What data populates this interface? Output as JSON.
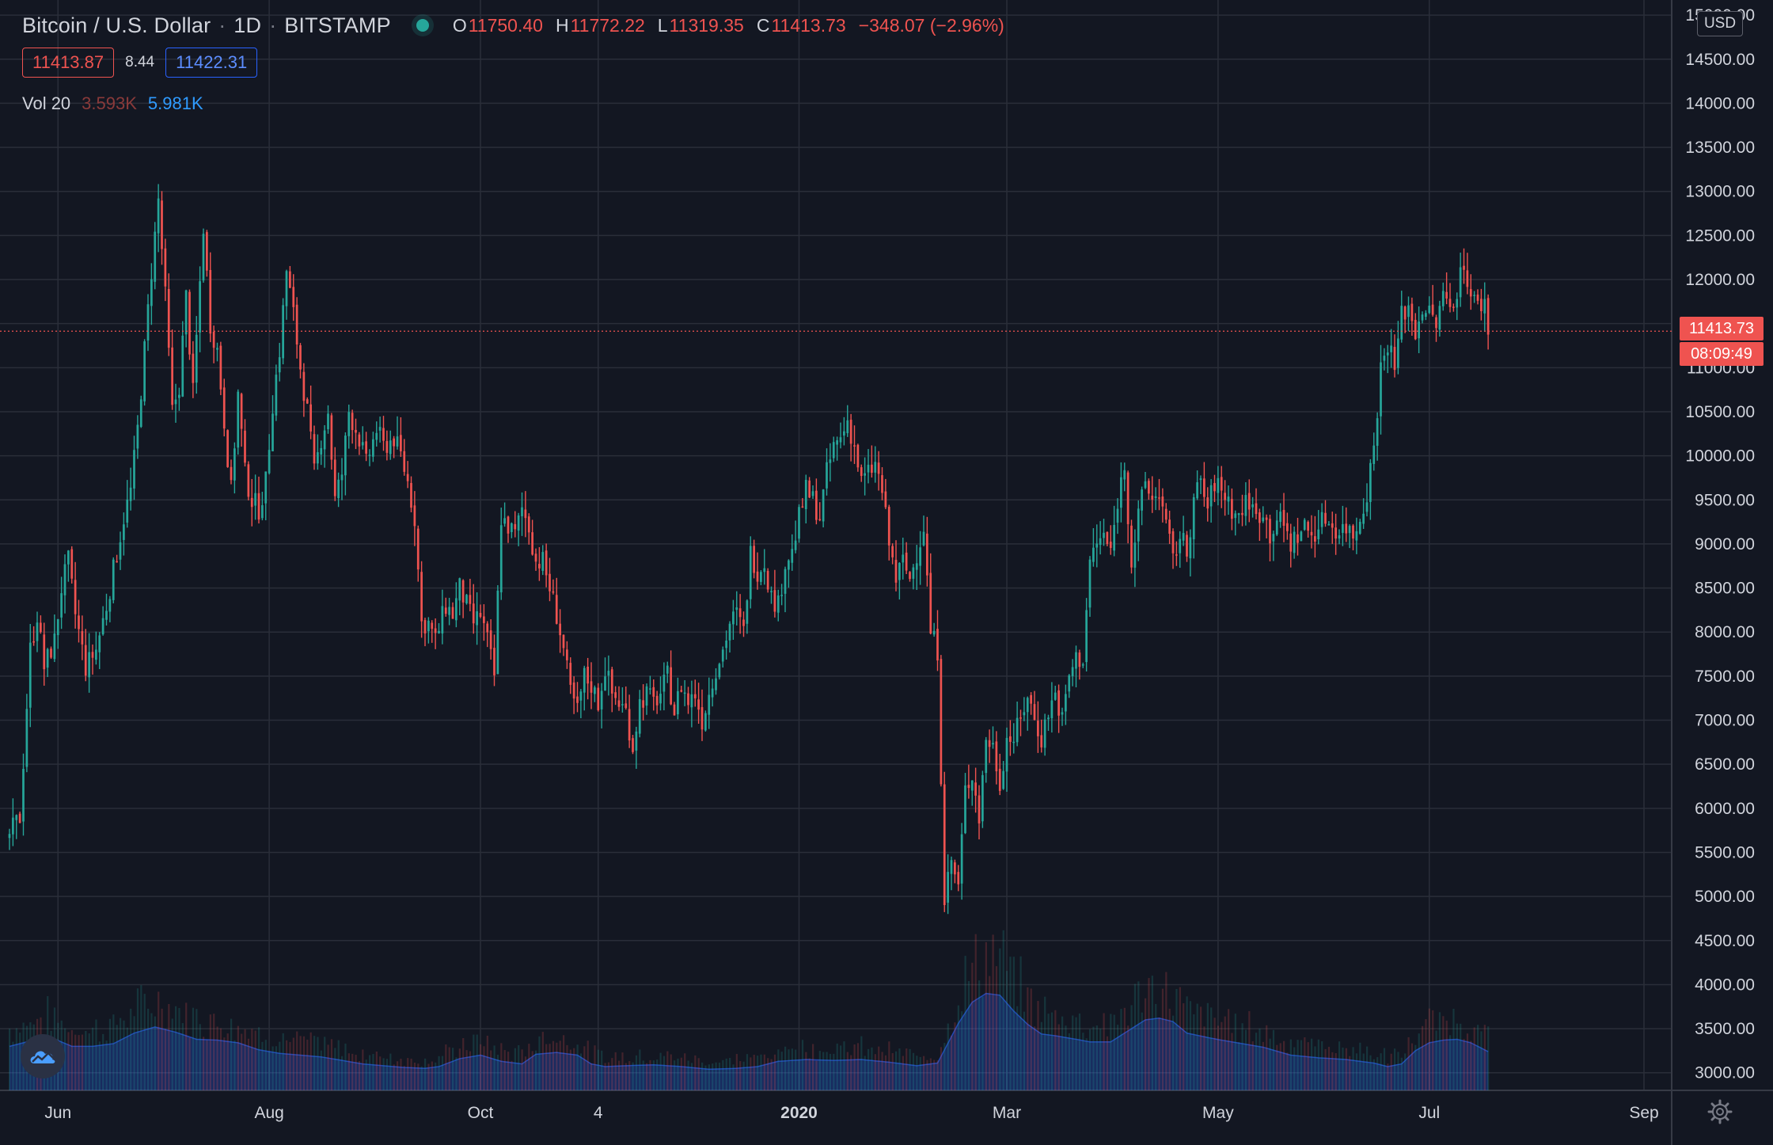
{
  "header": {
    "symbol": "Bitcoin / U.S. Dollar",
    "interval": "1D",
    "exchange": "BITSTAMP",
    "separator": "·",
    "ohlc": {
      "o_key": "O",
      "o_val": "11750.40",
      "h_key": "H",
      "h_val": "11772.22",
      "l_key": "L",
      "l_val": "11319.35",
      "c_key": "C",
      "c_val": "11413.73",
      "change": "−348.07 (−2.96%)"
    }
  },
  "quote": {
    "bid": "11413.87",
    "spread": "8.44",
    "ask": "11422.31"
  },
  "volume_legend": {
    "label": "Vol 20",
    "volume": "3.593K",
    "ma": "5.981K"
  },
  "price_scale": {
    "currency": "USD",
    "last_price": "11413.73",
    "countdown": "08:09:49"
  },
  "colors": {
    "background": "#131722",
    "up": "#26a69a",
    "down": "#ef5350",
    "grid": "#2a2e39",
    "volume_ma": "#2962ff"
  },
  "chart_data": {
    "type": "candlestick",
    "title": "Bitcoin / U.S. Dollar, 1D, BITSTAMP",
    "ylim": [
      2800,
      15100
    ],
    "y_ticks": [
      3000,
      3500,
      4000,
      4500,
      5000,
      5500,
      6000,
      6500,
      7000,
      7500,
      8000,
      8500,
      9000,
      9500,
      10000,
      10500,
      11000,
      11500,
      12000,
      12500,
      13000,
      13500,
      14000,
      14500,
      15000
    ],
    "y_tick_labels": [
      "3000.00",
      "3500.00",
      "4000.00",
      "4500.00",
      "5000.00",
      "5500.00",
      "6000.00",
      "6500.00",
      "7000.00",
      "7500.00",
      "8000.00",
      "8500.00",
      "9000.00",
      "9500.00",
      "10000.00",
      "10500.00",
      "11000.00",
      "11500.00",
      "12000.00",
      "12500.00",
      "13000.00",
      "13500.00",
      "14000.00",
      "14500.00",
      "15000.00"
    ],
    "x_ticks": [
      {
        "label": "Jun",
        "day": 14
      },
      {
        "label": "Aug",
        "day": 75
      },
      {
        "label": "Oct",
        "day": 136
      },
      {
        "label": "4",
        "day": 170
      },
      {
        "label": "2020",
        "day": 228
      },
      {
        "label": "Mar",
        "day": 288
      },
      {
        "label": "May",
        "day": 349
      },
      {
        "label": "Jul",
        "day": 410
      },
      {
        "label": "Sep",
        "day": 472
      }
    ],
    "close_path": [
      [
        0,
        5700
      ],
      [
        3,
        5900
      ],
      [
        6,
        7800
      ],
      [
        8,
        8200
      ],
      [
        10,
        7600
      ],
      [
        13,
        7900
      ],
      [
        15,
        8500
      ],
      [
        17,
        8800
      ],
      [
        19,
        8200
      ],
      [
        22,
        7600
      ],
      [
        25,
        7800
      ],
      [
        28,
        8300
      ],
      [
        30,
        8700
      ],
      [
        33,
        9300
      ],
      [
        35,
        9600
      ],
      [
        37,
        10300
      ],
      [
        39,
        11200
      ],
      [
        41,
        12100
      ],
      [
        43,
        12900
      ],
      [
        45,
        11800
      ],
      [
        47,
        10500
      ],
      [
        49,
        10800
      ],
      [
        51,
        11800
      ],
      [
        53,
        10700
      ],
      [
        56,
        12600
      ],
      [
        58,
        11500
      ],
      [
        60,
        11200
      ],
      [
        62,
        10400
      ],
      [
        64,
        9600
      ],
      [
        66,
        10700
      ],
      [
        68,
        9800
      ],
      [
        70,
        9500
      ],
      [
        72,
        9400
      ],
      [
        74,
        9700
      ],
      [
        76,
        10600
      ],
      [
        78,
        11200
      ],
      [
        80,
        12100
      ],
      [
        82,
        11600
      ],
      [
        84,
        11000
      ],
      [
        86,
        10500
      ],
      [
        88,
        9800
      ],
      [
        90,
        10200
      ],
      [
        92,
        10500
      ],
      [
        94,
        9500
      ],
      [
        96,
        9800
      ],
      [
        98,
        10500
      ],
      [
        101,
        10200
      ],
      [
        103,
        9900
      ],
      [
        106,
        10300
      ],
      [
        108,
        10100
      ],
      [
        111,
        10200
      ],
      [
        113,
        10000
      ],
      [
        115,
        9700
      ],
      [
        117,
        9300
      ],
      [
        119,
        8100
      ],
      [
        121,
        8100
      ],
      [
        123,
        7900
      ],
      [
        126,
        8300
      ],
      [
        128,
        8200
      ],
      [
        130,
        8500
      ],
      [
        132,
        8300
      ],
      [
        134,
        8100
      ],
      [
        136,
        8200
      ],
      [
        138,
        7900
      ],
      [
        140,
        7500
      ],
      [
        142,
        9300
      ],
      [
        144,
        9200
      ],
      [
        146,
        9100
      ],
      [
        148,
        9400
      ],
      [
        150,
        9200
      ],
      [
        152,
        8800
      ],
      [
        154,
        8800
      ],
      [
        156,
        8500
      ],
      [
        158,
        8200
      ],
      [
        160,
        7800
      ],
      [
        162,
        7300
      ],
      [
        164,
        7100
      ],
      [
        166,
        7500
      ],
      [
        168,
        7400
      ],
      [
        170,
        7200
      ],
      [
        172,
        7600
      ],
      [
        174,
        7300
      ],
      [
        176,
        7200
      ],
      [
        178,
        7100
      ],
      [
        180,
        6700
      ],
      [
        182,
        7200
      ],
      [
        184,
        7300
      ],
      [
        186,
        7200
      ],
      [
        188,
        7300
      ],
      [
        190,
        7500
      ],
      [
        192,
        7100
      ],
      [
        194,
        7400
      ],
      [
        196,
        7200
      ],
      [
        198,
        7300
      ],
      [
        200,
        7000
      ],
      [
        202,
        7300
      ],
      [
        204,
        7600
      ],
      [
        206,
        7800
      ],
      [
        208,
        8100
      ],
      [
        210,
        8200
      ],
      [
        212,
        8000
      ],
      [
        214,
        8900
      ],
      [
        216,
        8700
      ],
      [
        218,
        8800
      ],
      [
        220,
        8400
      ],
      [
        222,
        8300
      ],
      [
        224,
        8800
      ],
      [
        226,
        8900
      ],
      [
        228,
        9300
      ],
      [
        230,
        9600
      ],
      [
        232,
        9500
      ],
      [
        234,
        9300
      ],
      [
        236,
        9800
      ],
      [
        238,
        10100
      ],
      [
        240,
        10200
      ],
      [
        242,
        10400
      ],
      [
        244,
        10100
      ],
      [
        246,
        9700
      ],
      [
        248,
        9800
      ],
      [
        250,
        9900
      ],
      [
        252,
        9600
      ],
      [
        254,
        9000
      ],
      [
        256,
        8600
      ],
      [
        258,
        8800
      ],
      [
        260,
        8600
      ],
      [
        262,
        8900
      ],
      [
        264,
        9200
      ],
      [
        266,
        8000
      ],
      [
        268,
        7800
      ],
      [
        270,
        5000
      ],
      [
        272,
        5400
      ],
      [
        274,
        5100
      ],
      [
        276,
        6200
      ],
      [
        278,
        6400
      ],
      [
        280,
        5900
      ],
      [
        282,
        6800
      ],
      [
        284,
        6700
      ],
      [
        286,
        6300
      ],
      [
        288,
        6800
      ],
      [
        290,
        6800
      ],
      [
        292,
        7000
      ],
      [
        294,
        7300
      ],
      [
        296,
        7000
      ],
      [
        298,
        6800
      ],
      [
        300,
        7100
      ],
      [
        302,
        7300
      ],
      [
        304,
        7000
      ],
      [
        306,
        7500
      ],
      [
        308,
        7700
      ],
      [
        310,
        7700
      ],
      [
        312,
        8800
      ],
      [
        314,
        9000
      ],
      [
        316,
        9100
      ],
      [
        318,
        8900
      ],
      [
        320,
        9500
      ],
      [
        322,
        9900
      ],
      [
        324,
        8800
      ],
      [
        326,
        9300
      ],
      [
        328,
        9700
      ],
      [
        330,
        9500
      ],
      [
        332,
        9600
      ],
      [
        334,
        9200
      ],
      [
        336,
        8800
      ],
      [
        338,
        9100
      ],
      [
        340,
        8900
      ],
      [
        342,
        9500
      ],
      [
        344,
        9700
      ],
      [
        346,
        9400
      ],
      [
        348,
        9700
      ],
      [
        350,
        9600
      ],
      [
        352,
        9500
      ],
      [
        354,
        9300
      ],
      [
        356,
        9400
      ],
      [
        358,
        9500
      ],
      [
        360,
        9300
      ],
      [
        362,
        9400
      ],
      [
        364,
        9100
      ],
      [
        366,
        9300
      ],
      [
        368,
        9200
      ],
      [
        370,
        9000
      ],
      [
        372,
        9100
      ],
      [
        374,
        9200
      ],
      [
        376,
        9100
      ],
      [
        378,
        9200
      ],
      [
        380,
        9300
      ],
      [
        382,
        9200
      ],
      [
        384,
        9150
      ],
      [
        386,
        9200
      ],
      [
        388,
        9100
      ],
      [
        390,
        9300
      ],
      [
        392,
        9600
      ],
      [
        394,
        10100
      ],
      [
        396,
        11000
      ],
      [
        398,
        11300
      ],
      [
        400,
        11000
      ],
      [
        402,
        11600
      ],
      [
        404,
        11700
      ],
      [
        406,
        11400
      ],
      [
        408,
        11700
      ],
      [
        410,
        11600
      ],
      [
        412,
        11500
      ],
      [
        414,
        11800
      ],
      [
        416,
        11700
      ],
      [
        418,
        11900
      ],
      [
        420,
        12200
      ],
      [
        422,
        11800
      ],
      [
        424,
        11700
      ],
      [
        426,
        11750
      ],
      [
        427,
        11414
      ]
    ],
    "volume_ma_path": [
      [
        0,
        3300
      ],
      [
        6,
        3360
      ],
      [
        12,
        3400
      ],
      [
        18,
        3300
      ],
      [
        24,
        3300
      ],
      [
        30,
        3330
      ],
      [
        36,
        3450
      ],
      [
        42,
        3520
      ],
      [
        48,
        3460
      ],
      [
        54,
        3380
      ],
      [
        60,
        3370
      ],
      [
        66,
        3340
      ],
      [
        72,
        3260
      ],
      [
        78,
        3220
      ],
      [
        84,
        3200
      ],
      [
        90,
        3180
      ],
      [
        96,
        3140
      ],
      [
        102,
        3100
      ],
      [
        108,
        3080
      ],
      [
        114,
        3060
      ],
      [
        120,
        3050
      ],
      [
        124,
        3070
      ],
      [
        130,
        3160
      ],
      [
        136,
        3200
      ],
      [
        142,
        3130
      ],
      [
        148,
        3100
      ],
      [
        152,
        3210
      ],
      [
        158,
        3230
      ],
      [
        164,
        3200
      ],
      [
        168,
        3100
      ],
      [
        172,
        3070
      ],
      [
        178,
        3080
      ],
      [
        186,
        3090
      ],
      [
        194,
        3070
      ],
      [
        202,
        3040
      ],
      [
        210,
        3050
      ],
      [
        216,
        3070
      ],
      [
        222,
        3130
      ],
      [
        230,
        3150
      ],
      [
        238,
        3140
      ],
      [
        246,
        3150
      ],
      [
        254,
        3120
      ],
      [
        262,
        3080
      ],
      [
        268,
        3110
      ],
      [
        270,
        3260
      ],
      [
        274,
        3560
      ],
      [
        278,
        3800
      ],
      [
        282,
        3900
      ],
      [
        286,
        3880
      ],
      [
        290,
        3700
      ],
      [
        294,
        3550
      ],
      [
        298,
        3440
      ],
      [
        302,
        3420
      ],
      [
        308,
        3380
      ],
      [
        312,
        3350
      ],
      [
        318,
        3350
      ],
      [
        324,
        3500
      ],
      [
        328,
        3600
      ],
      [
        332,
        3620
      ],
      [
        336,
        3580
      ],
      [
        340,
        3450
      ],
      [
        346,
        3400
      ],
      [
        350,
        3370
      ],
      [
        356,
        3330
      ],
      [
        362,
        3290
      ],
      [
        370,
        3200
      ],
      [
        378,
        3170
      ],
      [
        386,
        3150
      ],
      [
        394,
        3110
      ],
      [
        398,
        3070
      ],
      [
        402,
        3100
      ],
      [
        406,
        3250
      ],
      [
        410,
        3340
      ],
      [
        414,
        3370
      ],
      [
        418,
        3380
      ],
      [
        422,
        3340
      ],
      [
        427,
        3240
      ]
    ]
  }
}
